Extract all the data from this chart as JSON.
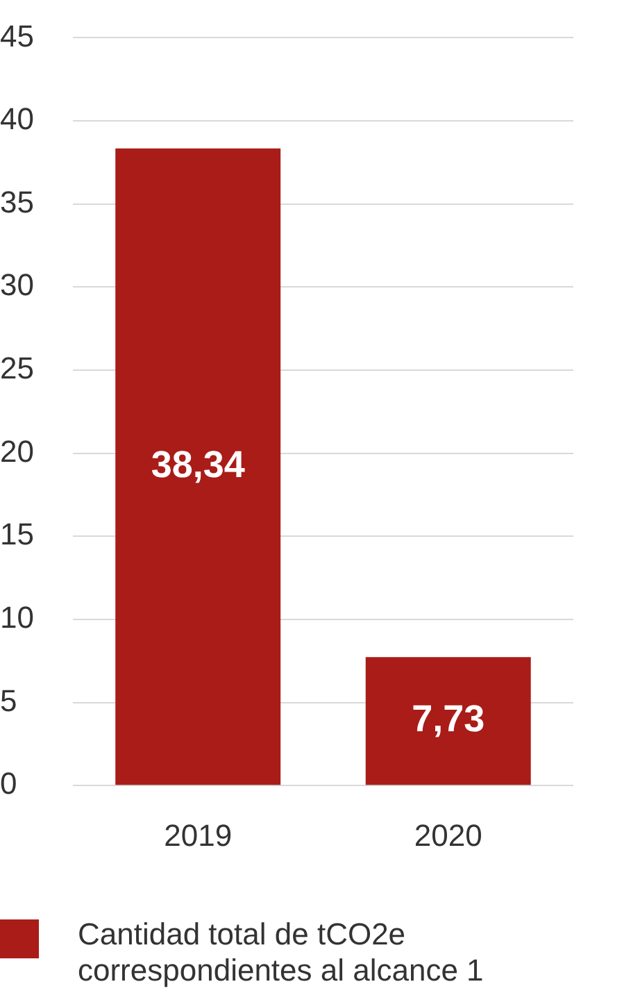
{
  "chart_data": {
    "type": "bar",
    "categories": [
      "2019",
      "2020"
    ],
    "series": [
      {
        "name": "Cantidad total de tCO2e correspondientes al alcance 1",
        "color": "#a91c18",
        "values": [
          38.34,
          7.73
        ],
        "value_labels": [
          "38,34",
          "7,73"
        ]
      }
    ],
    "ylim": [
      0,
      45
    ],
    "yticks": [
      0,
      5,
      10,
      15,
      20,
      25,
      30,
      35,
      40,
      45
    ],
    "grid": "y",
    "legend": "bottom left"
  }
}
